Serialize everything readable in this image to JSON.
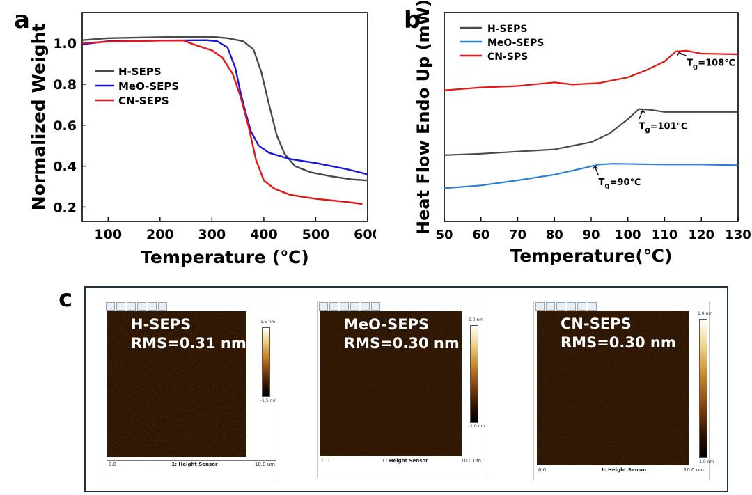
{
  "panels": {
    "a": "a",
    "b": "b",
    "c": "c"
  },
  "chart_data": [
    {
      "type": "line",
      "xlabel": "Temperature (℃)",
      "ylabel": "Normalized Weight",
      "xlim": [
        50,
        600
      ],
      "ylim": [
        0.13,
        1.15
      ],
      "xticks": [
        100,
        200,
        300,
        400,
        500,
        600
      ],
      "yticks": [
        0.2,
        0.4,
        0.6,
        0.8,
        1.0
      ],
      "ytick_labels": [
        "0.2",
        "0.4",
        "0.6",
        "0.8",
        "1.0"
      ],
      "legend": "middle-left",
      "series": [
        {
          "name": "H-SEPS",
          "color": "#4a4a4a",
          "points": [
            [
              50,
              1.015
            ],
            [
              100,
              1.025
            ],
            [
              200,
              1.03
            ],
            [
              300,
              1.032
            ],
            [
              330,
              1.025
            ],
            [
              360,
              1.01
            ],
            [
              380,
              0.97
            ],
            [
              395,
              0.86
            ],
            [
              410,
              0.7
            ],
            [
              425,
              0.55
            ],
            [
              440,
              0.46
            ],
            [
              460,
              0.4
            ],
            [
              490,
              0.37
            ],
            [
              530,
              0.35
            ],
            [
              570,
              0.335
            ],
            [
              600,
              0.33
            ]
          ]
        },
        {
          "name": "MeO-SEPS",
          "color": "#1414e6",
          "points": [
            [
              50,
              0.995
            ],
            [
              100,
              1.01
            ],
            [
              200,
              1.013
            ],
            [
              290,
              1.015
            ],
            [
              310,
              1.01
            ],
            [
              330,
              0.98
            ],
            [
              345,
              0.88
            ],
            [
              355,
              0.76
            ],
            [
              365,
              0.66
            ],
            [
              375,
              0.57
            ],
            [
              390,
              0.5
            ],
            [
              410,
              0.465
            ],
            [
              450,
              0.435
            ],
            [
              500,
              0.415
            ],
            [
              560,
              0.385
            ],
            [
              600,
              0.36
            ]
          ]
        },
        {
          "name": "CN-SEPS",
          "color": "#e81414",
          "points": [
            [
              50,
              1.0
            ],
            [
              100,
              1.008
            ],
            [
              200,
              1.013
            ],
            [
              245,
              1.013
            ],
            [
              270,
              0.99
            ],
            [
              300,
              0.965
            ],
            [
              320,
              0.93
            ],
            [
              340,
              0.85
            ],
            [
              355,
              0.74
            ],
            [
              370,
              0.6
            ],
            [
              385,
              0.43
            ],
            [
              400,
              0.33
            ],
            [
              420,
              0.29
            ],
            [
              450,
              0.26
            ],
            [
              500,
              0.24
            ],
            [
              560,
              0.225
            ],
            [
              590,
              0.215
            ]
          ]
        }
      ]
    },
    {
      "type": "line",
      "xlabel": "Temperature(℃)",
      "ylabel": "Heat Flow Endo Up (mW)",
      "xlim": [
        50,
        130
      ],
      "xticks": [
        50,
        60,
        70,
        80,
        90,
        100,
        110,
        120,
        130
      ],
      "yticks_shown": false,
      "legend": "top-left",
      "series": [
        {
          "name": "H-SEPS",
          "color": "#4a4a4a",
          "points": [
            [
              50,
              0.42
            ],
            [
              60,
              0.44
            ],
            [
              70,
              0.47
            ],
            [
              80,
              0.5
            ],
            [
              90,
              0.6
            ],
            [
              95,
              0.72
            ],
            [
              100,
              0.92
            ],
            [
              103,
              1.06
            ],
            [
              106,
              1.05
            ],
            [
              110,
              1.02
            ],
            [
              120,
              1.02
            ],
            [
              130,
              1.02
            ]
          ]
        },
        {
          "name": "MeO-SEPS",
          "color": "#2b7fd8",
          "points": [
            [
              50,
              -0.04
            ],
            [
              60,
              0.0
            ],
            [
              70,
              0.07
            ],
            [
              80,
              0.15
            ],
            [
              88,
              0.24
            ],
            [
              92,
              0.29
            ],
            [
              96,
              0.3
            ],
            [
              110,
              0.29
            ],
            [
              120,
              0.29
            ],
            [
              130,
              0.28
            ]
          ]
        },
        {
          "name": "CN-SPS",
          "color": "#e81414",
          "points": [
            [
              50,
              1.32
            ],
            [
              60,
              1.36
            ],
            [
              70,
              1.38
            ],
            [
              80,
              1.43
            ],
            [
              85,
              1.4
            ],
            [
              92,
              1.42
            ],
            [
              100,
              1.5
            ],
            [
              105,
              1.6
            ],
            [
              110,
              1.72
            ],
            [
              113,
              1.86
            ],
            [
              116,
              1.87
            ],
            [
              120,
              1.83
            ],
            [
              130,
              1.82
            ]
          ]
        }
      ],
      "annotations": [
        {
          "label": "T",
          "sub": "g",
          "value": "=108℃",
          "x": 114,
          "y": 1.87,
          "text_x": 116,
          "text_y": 1.7
        },
        {
          "label": "T",
          "sub": "g",
          "value": "=101℃",
          "x": 104,
          "y": 1.06,
          "text_x": 103,
          "text_y": 0.82
        },
        {
          "label": "T",
          "sub": "g",
          "value": "=90℃",
          "x": 91,
          "y": 0.29,
          "text_x": 92,
          "text_y": 0.04
        }
      ],
      "ylim": [
        -0.5,
        2.4
      ]
    }
  ],
  "afm": [
    {
      "sample": "H-SEPS",
      "rms": "RMS=0.31 nm",
      "cbar_top": "1.5 nm",
      "cbar_bottom": "-1.5 nm",
      "axis_left": "0.0",
      "axis_title": "1: Height Sensor",
      "axis_right": "10.0 um"
    },
    {
      "sample": "MeO-SEPS",
      "rms": "RMS=0.30 nm",
      "cbar_top": "1.0 nm",
      "cbar_bottom": "-1.0 nm",
      "axis_left": "0.0",
      "axis_title": "1: Height Sensor",
      "axis_right": "10.0 um"
    },
    {
      "sample": "CN-SEPS",
      "rms": "RMS=0.30 nm",
      "cbar_top": "1.0 nm",
      "cbar_bottom": "-1.0 nm",
      "axis_left": "0.0",
      "axis_title": "1: Height Sensor",
      "axis_right": "10.0 um"
    }
  ],
  "colors": {
    "frame": "#1f3249",
    "afm_dark": "#5a2d07",
    "afm_light": "#e3b356"
  }
}
